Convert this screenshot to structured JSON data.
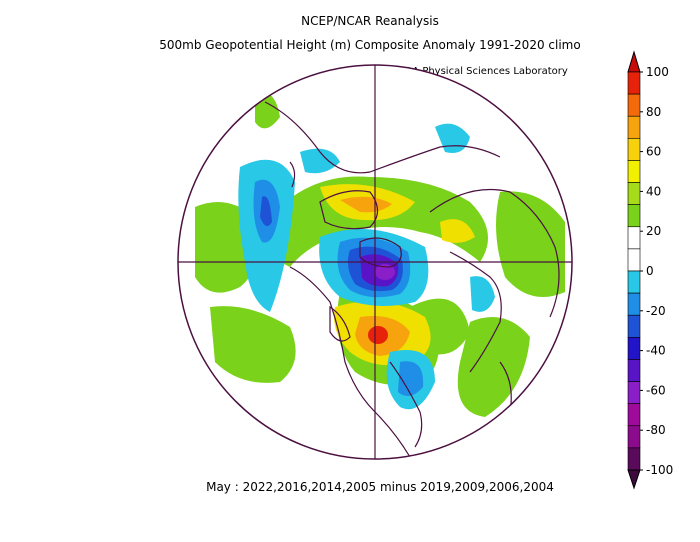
{
  "title_line1": "NCEP/NCAR Reanalysis",
  "title_line2": "500mb Geopotential Height (m) Composite Anomaly 1991-2020 climo",
  "credit": "NOAA Physical Sciences Laboratory",
  "caption": "May : 2022,2016,2014,2005 minus 2019,2009,2006,2004",
  "colorbar": {
    "labels": [
      "100",
      "80",
      "60",
      "40",
      "20",
      "0",
      "-20",
      "-40",
      "-60",
      "-80",
      "-100"
    ],
    "colors": [
      "#e6230a",
      "#f46a0a",
      "#f7a30d",
      "#f7d10d",
      "#f0f000",
      "#a6dc19",
      "#7ad21a",
      "#ffffff",
      "#ffffff",
      "#28c8e6",
      "#1f8ee6",
      "#1f53d6",
      "#2214c8",
      "#5a14c8",
      "#8a1ec8",
      "#a00a9a",
      "#8c0a8c",
      "#5a0a5a"
    ]
  },
  "colors": {
    "coast": "#4b1040",
    "green": "#7ad21a",
    "yellow": "#f0e000",
    "orange": "#f7a30d",
    "red": "#e6230a",
    "lightblue": "#28c8e6",
    "blue": "#1f8ee6",
    "darkblue": "#1f53d6",
    "purple": "#5a14c8",
    "violet": "#8a1ec8"
  }
}
